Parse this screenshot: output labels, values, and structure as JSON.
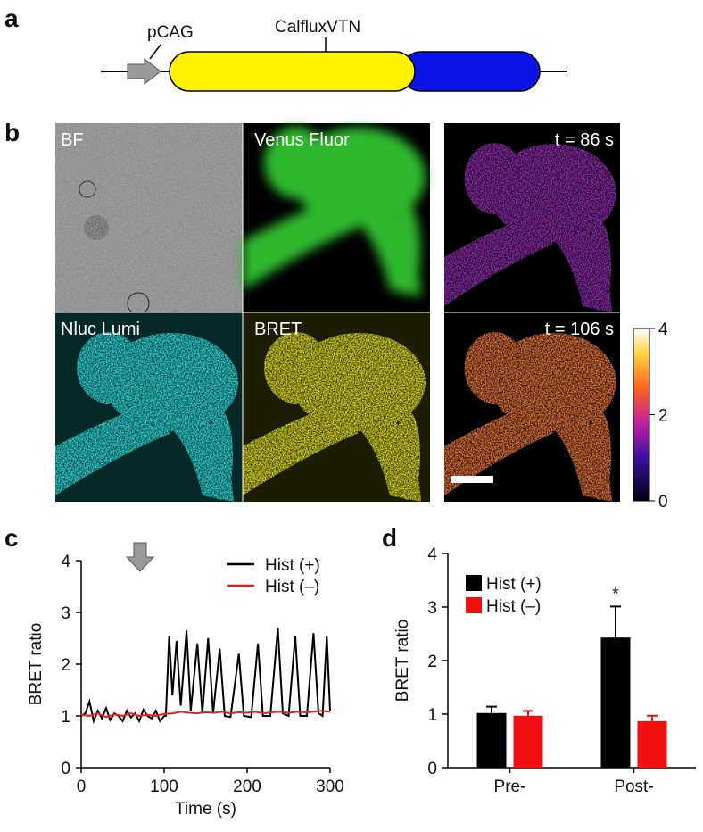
{
  "panel_labels": [
    "a",
    "b",
    "c",
    "d"
  ],
  "construct": {
    "promoter": "pCAG",
    "gene": "CalfluxVTN"
  },
  "images": {
    "labels": [
      "BF",
      "Venus Fluor",
      "Nluc Lumi",
      "BRET"
    ],
    "time_labels": [
      "t = 86 s",
      "t = 106 s"
    ]
  },
  "colorbar": {
    "lim": [
      0,
      4
    ],
    "ticks": [
      0,
      2,
      4
    ]
  },
  "chart_data": [
    {
      "type": "line",
      "ylabel": "BRET ratio",
      "xlabel": "Time (s)",
      "xlim": [
        0,
        300
      ],
      "xticks": [
        0,
        100,
        200,
        300
      ],
      "ylim": [
        0,
        4
      ],
      "yticks": [
        0,
        1,
        2,
        3,
        4
      ],
      "legend": "upper right",
      "series": [
        {
          "name": "Hist (+)",
          "color": "#000000",
          "x": [
            0,
            5,
            10,
            15,
            20,
            25,
            30,
            35,
            40,
            45,
            50,
            55,
            60,
            65,
            70,
            75,
            80,
            85,
            90,
            95,
            100,
            102,
            106,
            110,
            115,
            120,
            127,
            132,
            140,
            146,
            153,
            159,
            167,
            173,
            180,
            190,
            196,
            205,
            213,
            219,
            228,
            237,
            243,
            250,
            258,
            264,
            272,
            280,
            286,
            291,
            296,
            300
          ],
          "values": [
            1.0,
            1.05,
            1.28,
            0.9,
            1.1,
            0.95,
            1.15,
            0.92,
            1.05,
            1.0,
            0.9,
            1.1,
            0.97,
            1.05,
            0.9,
            1.12,
            1.0,
            0.95,
            1.1,
            0.9,
            1.0,
            1.0,
            2.55,
            1.4,
            2.45,
            1.2,
            2.65,
            1.1,
            2.4,
            1.05,
            2.5,
            1.05,
            2.3,
            1.0,
            0.98,
            2.2,
            1.0,
            0.98,
            2.4,
            1.0,
            1.0,
            2.7,
            1.05,
            1.0,
            2.55,
            1.0,
            1.0,
            2.6,
            1.05,
            1.0,
            2.55,
            1.1
          ]
        },
        {
          "name": "Hist (–)",
          "color": "#e8201c",
          "x": [
            0,
            10,
            20,
            30,
            40,
            50,
            60,
            70,
            80,
            90,
            100,
            110,
            120,
            130,
            140,
            150,
            160,
            170,
            180,
            190,
            200,
            210,
            220,
            230,
            240,
            250,
            260,
            270,
            280,
            290,
            300
          ],
          "values": [
            1.02,
            1.0,
            1.05,
            0.98,
            1.03,
            1.0,
            1.05,
            1.0,
            1.02,
            1.0,
            1.04,
            1.05,
            1.08,
            1.06,
            1.05,
            1.07,
            1.06,
            1.08,
            1.05,
            1.07,
            1.06,
            1.08,
            1.05,
            1.07,
            1.08,
            1.06,
            1.08,
            1.07,
            1.08,
            1.1,
            1.08
          ]
        }
      ]
    },
    {
      "type": "bar",
      "ylabel": "BRET ratio",
      "categories": [
        "Pre-",
        "Post-"
      ],
      "ylim": [
        0,
        4
      ],
      "yticks": [
        0,
        1,
        2,
        3,
        4
      ],
      "legend": "upper left",
      "annotation": "*",
      "series": [
        {
          "name": "Hist (+)",
          "color": "#000000",
          "values": [
            1.02,
            2.43
          ],
          "errors": [
            0.12,
            0.58
          ]
        },
        {
          "name": "Hist (–)",
          "color": "#f01010",
          "values": [
            0.97,
            0.87
          ],
          "errors": [
            0.09,
            0.1
          ]
        }
      ]
    }
  ]
}
